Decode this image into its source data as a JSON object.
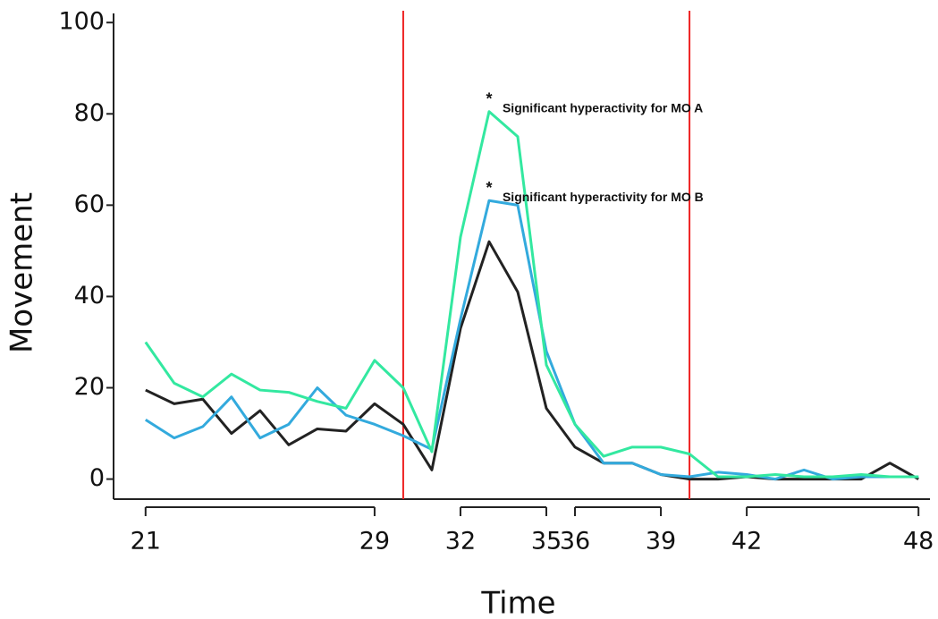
{
  "chart_data": {
    "type": "line",
    "x": [
      21,
      22,
      23,
      24,
      25,
      26,
      27,
      28,
      29,
      30,
      31,
      32,
      33,
      34,
      35,
      36,
      37,
      38,
      39,
      40,
      41,
      42,
      43,
      44,
      45,
      46,
      47,
      48
    ],
    "series": [
      {
        "color": "#222222",
        "values": [
          19.5,
          16.5,
          17.5,
          10,
          15,
          7.5,
          11,
          10.5,
          16.5,
          12,
          2,
          33,
          52,
          41,
          15.5,
          7,
          3.5,
          3.5,
          1,
          0,
          0,
          0.5,
          0,
          0,
          0,
          0,
          3.5,
          0
        ]
      },
      {
        "color": "#33aadd",
        "values": [
          13,
          9,
          11.5,
          18,
          9,
          12,
          20,
          14,
          12,
          9.5,
          6.5,
          35,
          61,
          60,
          28,
          12,
          3.5,
          3.5,
          1,
          0.5,
          1.5,
          1,
          0,
          2,
          0,
          0.5,
          0.5,
          0.5
        ]
      },
      {
        "color": "#33e8a0",
        "values": [
          30,
          21,
          18,
          23,
          19.5,
          19,
          17,
          15.5,
          26,
          20,
          6,
          53,
          80.5,
          75,
          25,
          12,
          5,
          7,
          7,
          5.5,
          0.5,
          0.5,
          1,
          0.5,
          0.5,
          1,
          0.5,
          0.5
        ]
      }
    ],
    "xlabel": "Time",
    "ylabel": "Movement",
    "xlim": [
      20.6,
      48.4
    ],
    "ylim": [
      -4,
      102
    ],
    "xticks": [
      21,
      29,
      32,
      35,
      36,
      39,
      42,
      48
    ],
    "yticks": [
      0,
      20,
      40,
      60,
      80,
      100
    ],
    "vlines": [
      30,
      40
    ],
    "vline_color": "#ee2222",
    "annotations": [
      {
        "marker": "*",
        "text": "Significant hyperactivity for MO A",
        "x": 33,
        "y": 83
      },
      {
        "marker": "*",
        "text": "Significant hyperactivity for MO B",
        "x": 33,
        "y": 63.5
      }
    ]
  }
}
